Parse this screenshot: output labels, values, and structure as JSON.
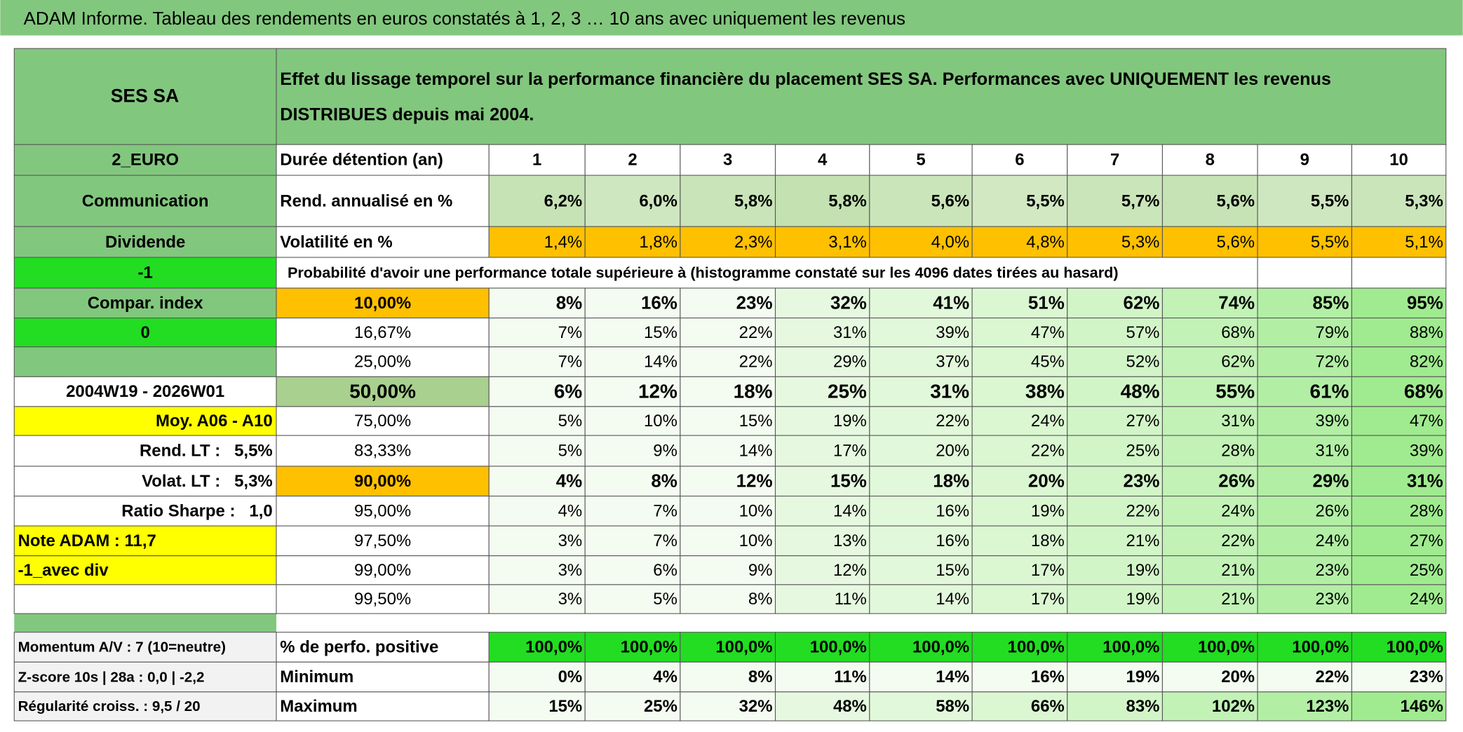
{
  "header": {
    "title": "ADAM Informe. Tableau des rendements en euros constatés à 1, 2, 3 … 10 ans avec uniquement les revenus"
  },
  "table": {
    "corner": "SES SA",
    "description": [
      "Effet du lissage temporel sur la performance financière du placement SES SA. Performances avec UNIQUEMENT les revenus",
      "DISTRIBUES depuis mai 2004."
    ],
    "rows": [
      {
        "left": "2_EURO",
        "label": "Durée détention (an)",
        "cells": [
          "1",
          "2",
          "3",
          "4",
          "5",
          "6",
          "7",
          "8",
          "9",
          "10"
        ]
      },
      {
        "left": "Communication",
        "label": "Rend. annualisé en %",
        "cells": [
          "6,2%",
          "6,0%",
          "5,8%",
          "5,8%",
          "5,6%",
          "5,5%",
          "5,7%",
          "5,6%",
          "5,5%",
          "5,3%"
        ]
      },
      {
        "left": "Dividende",
        "label": "Volatilité en %",
        "cells": [
          "1,4%",
          "1,8%",
          "2,3%",
          "3,1%",
          "4,0%",
          "4,8%",
          "5,3%",
          "5,6%",
          "5,5%",
          "5,1%"
        ]
      },
      {
        "left": "-1",
        "label": "Probabilité d'avoir une performance totale supérieure à (histogramme constaté sur les 4096 dates tirées au hasard)"
      },
      {
        "left": "Compar. index",
        "label": "10,00%",
        "cells": [
          "8%",
          "16%",
          "23%",
          "32%",
          "41%",
          "51%",
          "62%",
          "74%",
          "85%",
          "95%"
        ]
      },
      {
        "left": "0",
        "label": "16,67%",
        "cells": [
          "7%",
          "15%",
          "22%",
          "31%",
          "39%",
          "47%",
          "57%",
          "68%",
          "79%",
          "88%"
        ]
      },
      {
        "label": "25,00%",
        "cells": [
          "7%",
          "14%",
          "22%",
          "29%",
          "37%",
          "45%",
          "52%",
          "62%",
          "72%",
          "82%"
        ]
      },
      {
        "left": "2004W19 - 2026W01",
        "label": "50,00%",
        "cells": [
          "6%",
          "12%",
          "18%",
          "25%",
          "31%",
          "38%",
          "48%",
          "55%",
          "61%",
          "68%"
        ]
      },
      {
        "left": "Moy. A06 - A10",
        "label": "75,00%",
        "cells": [
          "5%",
          "10%",
          "15%",
          "19%",
          "22%",
          "24%",
          "27%",
          "31%",
          "39%",
          "47%"
        ]
      },
      {
        "left": "Rend. LT :   5,5%",
        "label": "83,33%",
        "cells": [
          "5%",
          "9%",
          "14%",
          "17%",
          "20%",
          "22%",
          "25%",
          "28%",
          "31%",
          "39%"
        ]
      },
      {
        "left": "Volat. LT :   5,3%",
        "label": "90,00%",
        "cells": [
          "4%",
          "8%",
          "12%",
          "15%",
          "18%",
          "20%",
          "23%",
          "26%",
          "29%",
          "31%"
        ]
      },
      {
        "left": "Ratio Sharpe :   1,0",
        "label": "95,00%",
        "cells": [
          "4%",
          "7%",
          "10%",
          "14%",
          "16%",
          "19%",
          "22%",
          "24%",
          "26%",
          "28%"
        ]
      },
      {
        "left": "Note ADAM : 11,7",
        "label": "97,50%",
        "cells": [
          "3%",
          "7%",
          "10%",
          "13%",
          "16%",
          "18%",
          "21%",
          "22%",
          "24%",
          "27%"
        ]
      },
      {
        "left": "-1_avec div",
        "label": "99,00%",
        "cells": [
          "3%",
          "6%",
          "9%",
          "12%",
          "15%",
          "17%",
          "19%",
          "21%",
          "23%",
          "25%"
        ]
      },
      {
        "label": "99,50%",
        "cells": [
          "3%",
          "5%",
          "8%",
          "11%",
          "14%",
          "17%",
          "19%",
          "21%",
          "23%",
          "24%"
        ]
      },
      {
        "left": "Momentum A/V : 7 (10=neutre)",
        "label": "% de perfo. positive",
        "cells": [
          "100,0%",
          "100,0%",
          "100,0%",
          "100,0%",
          "100,0%",
          "100,0%",
          "100,0%",
          "100,0%",
          "100,0%",
          "100,0%"
        ]
      },
      {
        "left": "Z-score 10s | 28a : 0,0 | -2,2",
        "label": "Minimum",
        "cells": [
          "0%",
          "4%",
          "8%",
          "11%",
          "14%",
          "16%",
          "19%",
          "20%",
          "22%",
          "23%"
        ]
      },
      {
        "left": "Régularité croiss. : 9,5 / 20",
        "label": "Maximum",
        "cells": [
          "15%",
          "25%",
          "32%",
          "48%",
          "58%",
          "66%",
          "83%",
          "102%",
          "123%",
          "146%"
        ]
      }
    ]
  }
}
